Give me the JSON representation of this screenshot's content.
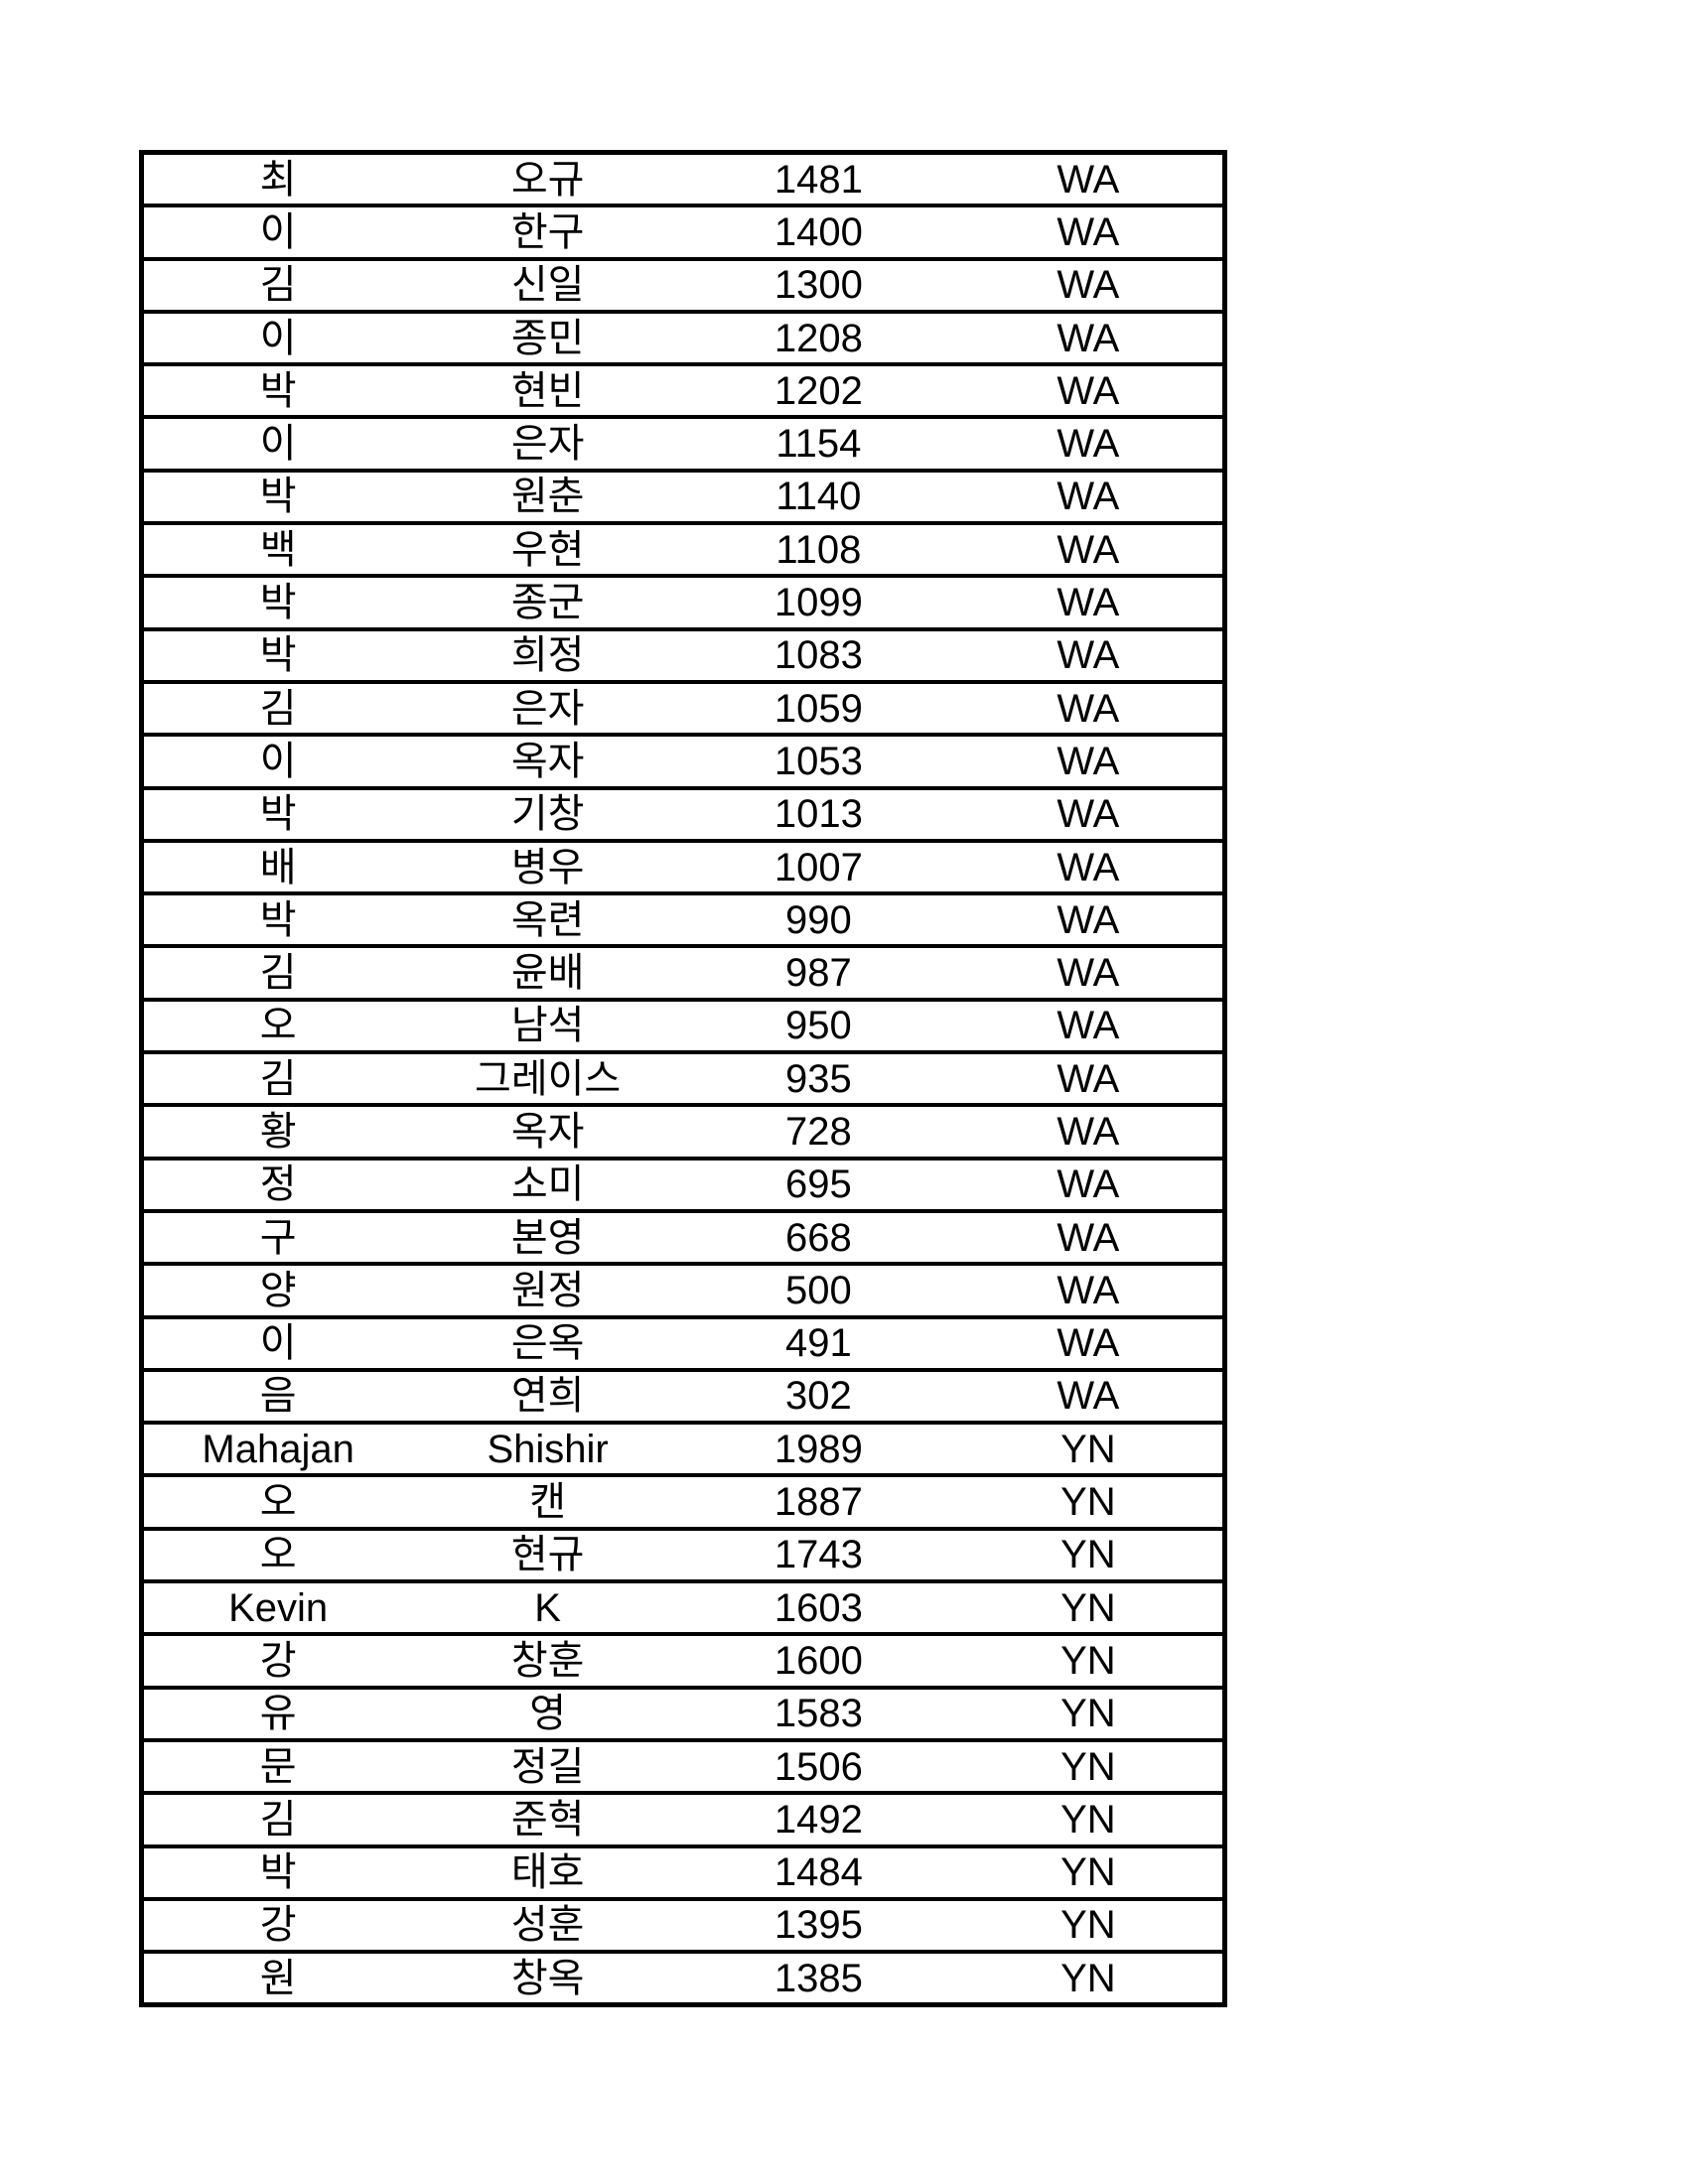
{
  "page": {
    "background_color": "#ffffff",
    "text_color": "#000000",
    "border_color": "#000000"
  },
  "table": {
    "columns": [
      "last_name",
      "first_name",
      "number",
      "code"
    ],
    "rows": [
      {
        "last": "최",
        "first": "오규",
        "number": "1481",
        "code": "WA"
      },
      {
        "last": "이",
        "first": "한구",
        "number": "1400",
        "code": "WA"
      },
      {
        "last": "김",
        "first": "신일",
        "number": "1300",
        "code": "WA"
      },
      {
        "last": "이",
        "first": "종민",
        "number": "1208",
        "code": "WA"
      },
      {
        "last": "박",
        "first": "현빈",
        "number": "1202",
        "code": "WA"
      },
      {
        "last": "이",
        "first": "은자",
        "number": "1154",
        "code": "WA"
      },
      {
        "last": "박",
        "first": "원춘",
        "number": "1140",
        "code": "WA"
      },
      {
        "last": "백",
        "first": "우현",
        "number": "1108",
        "code": "WA"
      },
      {
        "last": "박",
        "first": "종군",
        "number": "1099",
        "code": "WA"
      },
      {
        "last": "박",
        "first": "희정",
        "number": "1083",
        "code": "WA"
      },
      {
        "last": "김",
        "first": "은자",
        "number": "1059",
        "code": "WA"
      },
      {
        "last": "이",
        "first": "옥자",
        "number": "1053",
        "code": "WA"
      },
      {
        "last": "박",
        "first": "기창",
        "number": "1013",
        "code": "WA"
      },
      {
        "last": "배",
        "first": "병우",
        "number": "1007",
        "code": "WA"
      },
      {
        "last": "박",
        "first": "옥련",
        "number": "990",
        "code": "WA"
      },
      {
        "last": "김",
        "first": "윤배",
        "number": "987",
        "code": "WA"
      },
      {
        "last": "오",
        "first": "남석",
        "number": "950",
        "code": "WA"
      },
      {
        "last": "김",
        "first": "그레이스",
        "number": "935",
        "code": "WA"
      },
      {
        "last": "황",
        "first": "옥자",
        "number": "728",
        "code": "WA"
      },
      {
        "last": "정",
        "first": "소미",
        "number": "695",
        "code": "WA"
      },
      {
        "last": "구",
        "first": "본영",
        "number": "668",
        "code": "WA"
      },
      {
        "last": "양",
        "first": "원정",
        "number": "500",
        "code": "WA"
      },
      {
        "last": "이",
        "first": "은옥",
        "number": "491",
        "code": "WA"
      },
      {
        "last": "음",
        "first": "연희",
        "number": "302",
        "code": "WA"
      },
      {
        "last": "Mahajan",
        "first": "Shishir",
        "number": "1989",
        "code": "YN"
      },
      {
        "last": "오",
        "first": "캔",
        "number": "1887",
        "code": "YN"
      },
      {
        "last": "오",
        "first": "현규",
        "number": "1743",
        "code": "YN"
      },
      {
        "last": "Kevin",
        "first": "K",
        "number": "1603",
        "code": "YN"
      },
      {
        "last": "강",
        "first": "창훈",
        "number": "1600",
        "code": "YN"
      },
      {
        "last": "유",
        "first": "영",
        "number": "1583",
        "code": "YN"
      },
      {
        "last": "문",
        "first": "정길",
        "number": "1506",
        "code": "YN"
      },
      {
        "last": "김",
        "first": "준혁",
        "number": "1492",
        "code": "YN"
      },
      {
        "last": "박",
        "first": "태호",
        "number": "1484",
        "code": "YN"
      },
      {
        "last": "강",
        "first": "성훈",
        "number": "1395",
        "code": "YN"
      },
      {
        "last": "원",
        "first": "창옥",
        "number": "1385",
        "code": "YN"
      }
    ]
  }
}
